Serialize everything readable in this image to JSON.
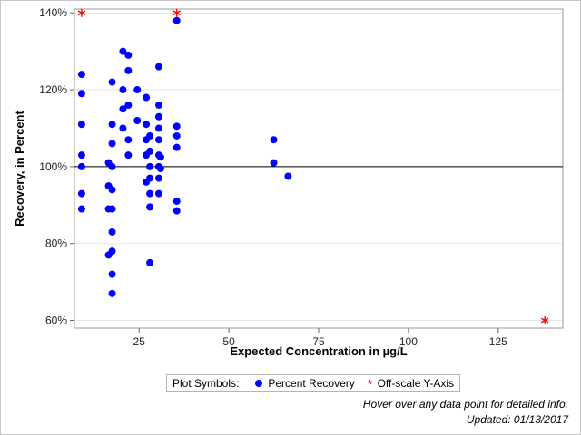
{
  "chart_data": {
    "type": "scatter",
    "xlabel": "Expected Concentration in µg/L",
    "ylabel": "Recovery, in Percent",
    "xlim": [
      7,
      143
    ],
    "ylim": [
      58,
      141
    ],
    "x_ticks": [
      25,
      50,
      75,
      100,
      125
    ],
    "x_tick_labels": [
      "25",
      "50",
      "75",
      "100",
      "125"
    ],
    "y_ticks": [
      60,
      80,
      100,
      120,
      140
    ],
    "y_tick_labels": [
      "60%",
      "80%",
      "100%",
      "120%",
      "140%"
    ],
    "reference_line_y": 100,
    "grid": "horizontal",
    "colors": {
      "recovery": "#0000ff",
      "offscale": "#ff0000",
      "grid": "#e6e6e6"
    },
    "series": [
      {
        "name": "Percent Recovery",
        "marker": "circle",
        "points": [
          [
            9,
            124
          ],
          [
            9,
            119
          ],
          [
            9,
            111
          ],
          [
            9,
            103
          ],
          [
            9,
            100
          ],
          [
            9,
            93
          ],
          [
            9,
            89
          ],
          [
            16.5,
            101
          ],
          [
            16.5,
            95
          ],
          [
            16.5,
            89
          ],
          [
            16.5,
            77
          ],
          [
            17.5,
            122
          ],
          [
            17.5,
            111
          ],
          [
            17.5,
            106
          ],
          [
            17.5,
            100
          ],
          [
            17.5,
            94
          ],
          [
            17.5,
            89
          ],
          [
            17.5,
            83
          ],
          [
            17.5,
            78
          ],
          [
            17.5,
            72
          ],
          [
            17.5,
            67
          ],
          [
            20.5,
            130
          ],
          [
            20.5,
            120
          ],
          [
            20.5,
            115
          ],
          [
            20.5,
            110
          ],
          [
            22,
            129
          ],
          [
            22,
            125
          ],
          [
            22,
            116
          ],
          [
            22,
            107
          ],
          [
            22,
            103
          ],
          [
            24.5,
            120
          ],
          [
            24.5,
            112
          ],
          [
            27,
            118
          ],
          [
            27,
            111
          ],
          [
            27,
            107
          ],
          [
            27,
            103
          ],
          [
            27,
            96
          ],
          [
            28,
            108
          ],
          [
            28,
            104
          ],
          [
            28,
            100
          ],
          [
            28,
            97
          ],
          [
            28,
            93
          ],
          [
            28,
            89.5
          ],
          [
            28,
            75
          ],
          [
            30.5,
            126
          ],
          [
            30.5,
            116
          ],
          [
            30.5,
            113
          ],
          [
            30.5,
            110
          ],
          [
            30.5,
            107
          ],
          [
            30.5,
            103
          ],
          [
            30.5,
            100
          ],
          [
            30.5,
            97
          ],
          [
            30.5,
            93
          ],
          [
            31,
            102.5
          ],
          [
            31,
            99.5
          ],
          [
            35.5,
            138
          ],
          [
            35.5,
            110.5
          ],
          [
            35.5,
            108
          ],
          [
            35.5,
            105
          ],
          [
            35.5,
            91
          ],
          [
            35.5,
            88.5
          ],
          [
            62.5,
            107
          ],
          [
            62.5,
            101
          ],
          [
            66.5,
            97.5
          ]
        ]
      },
      {
        "name": "Off-scale Y-Axis",
        "marker": "asterisk",
        "points": [
          [
            9,
            140
          ],
          [
            35.5,
            140
          ],
          [
            138,
            60
          ]
        ]
      }
    ]
  },
  "legend": {
    "title": "Plot Symbols:",
    "items": [
      "Percent Recovery",
      "Off-scale Y-Axis"
    ]
  },
  "footnotes": {
    "hover": "Hover over any data point for detailed info.",
    "updated": "Updated: 01/13/2017"
  }
}
